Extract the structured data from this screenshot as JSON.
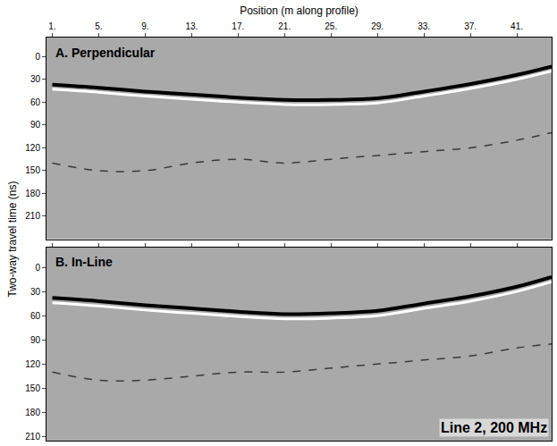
{
  "chart_data": [
    {
      "type": "line",
      "title": "A. Perpendicular",
      "x_label": "Position (m along profile)",
      "y_label": "Two-way travel time (ns)",
      "x": [
        1,
        5,
        9,
        13,
        17,
        21,
        25,
        29,
        33,
        37,
        41,
        44
      ],
      "series": [
        {
          "color": "#000000",
          "line_style": "solid",
          "values": [
            37,
            41,
            46,
            50,
            54,
            57,
            57,
            55,
            46,
            36,
            24,
            13
          ]
        },
        {
          "color": "#ffffff",
          "line_style": "solid",
          "values": [
            43,
            47,
            52,
            56,
            60,
            63,
            63,
            61,
            52,
            42,
            30,
            19
          ]
        },
        {
          "color": "#3a3a3a",
          "line_style": "dashed",
          "values": [
            140,
            150,
            150,
            140,
            135,
            140,
            135,
            130,
            125,
            120,
            110,
            100
          ]
        }
      ],
      "xlim": [
        0.5,
        44
      ],
      "xticks": [
        {
          "value": 1,
          "label": "1."
        },
        {
          "value": 5,
          "label": "5."
        },
        {
          "value": 9,
          "label": "9."
        },
        {
          "value": 13,
          "label": "13."
        },
        {
          "value": 17,
          "label": "17."
        },
        {
          "value": 21,
          "label": "21."
        },
        {
          "value": 25,
          "label": "25."
        },
        {
          "value": 29,
          "label": "29."
        },
        {
          "value": 33,
          "label": "33."
        },
        {
          "value": 37,
          "label": "37."
        },
        {
          "value": 41,
          "label": "41."
        }
      ],
      "ylim": [
        -25,
        240
      ],
      "yticks": [
        0,
        30,
        60,
        90,
        120,
        150,
        180,
        210
      ],
      "grid": false
    },
    {
      "type": "line",
      "title": "B. In-Line",
      "annotation": "Line 2, 200 MHz",
      "x": [
        1,
        5,
        9,
        13,
        17,
        21,
        25,
        29,
        33,
        37,
        41,
        44
      ],
      "series": [
        {
          "color": "#000000",
          "line_style": "solid",
          "values": [
            38,
            42,
            47,
            51,
            55,
            58,
            57,
            54,
            45,
            36,
            24,
            12
          ]
        },
        {
          "color": "#ffffff",
          "line_style": "solid",
          "values": [
            44,
            48,
            53,
            57,
            61,
            64,
            63,
            60,
            51,
            42,
            30,
            18
          ]
        },
        {
          "color": "#3a3a3a",
          "line_style": "dashed",
          "values": [
            130,
            140,
            140,
            135,
            130,
            130,
            125,
            120,
            115,
            110,
            100,
            95
          ]
        }
      ],
      "xlim": [
        0.5,
        44
      ],
      "xticks": [
        {
          "value": 1,
          "label": "1."
        },
        {
          "value": 5,
          "label": "5."
        },
        {
          "value": 9,
          "label": "9."
        },
        {
          "value": 13,
          "label": "13."
        },
        {
          "value": 17,
          "label": "17."
        },
        {
          "value": 21,
          "label": "21."
        },
        {
          "value": 25,
          "label": "25."
        },
        {
          "value": 29,
          "label": "29."
        },
        {
          "value": 33,
          "label": "33."
        },
        {
          "value": 37,
          "label": "37."
        },
        {
          "value": 41,
          "label": "41."
        }
      ],
      "ylim": [
        -25,
        215
      ],
      "yticks": [
        0,
        30,
        60,
        90,
        120,
        150,
        180,
        210
      ],
      "tick_labels": "y",
      "grid": false
    }
  ]
}
